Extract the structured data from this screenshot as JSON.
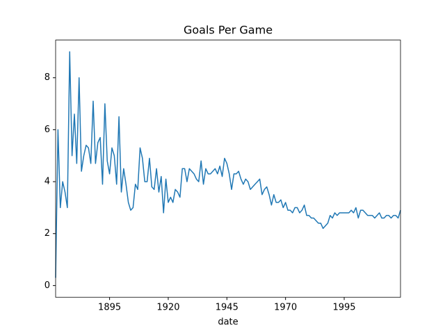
{
  "chart_data": {
    "type": "line",
    "title": "Goals Per Game",
    "xlabel": "date",
    "x": [
      1872,
      1873,
      1874,
      1875,
      1876,
      1877,
      1878,
      1879,
      1880,
      1881,
      1882,
      1883,
      1884,
      1885,
      1886,
      1887,
      1888,
      1889,
      1890,
      1891,
      1892,
      1893,
      1894,
      1895,
      1896,
      1897,
      1898,
      1899,
      1900,
      1901,
      1902,
      1903,
      1904,
      1905,
      1906,
      1907,
      1908,
      1909,
      1910,
      1911,
      1912,
      1913,
      1914,
      1915,
      1916,
      1917,
      1918,
      1919,
      1920,
      1921,
      1922,
      1923,
      1924,
      1925,
      1926,
      1927,
      1928,
      1929,
      1930,
      1931,
      1932,
      1933,
      1934,
      1935,
      1936,
      1937,
      1938,
      1939,
      1940,
      1941,
      1942,
      1943,
      1944,
      1945,
      1946,
      1947,
      1948,
      1949,
      1950,
      1951,
      1952,
      1953,
      1954,
      1955,
      1956,
      1957,
      1958,
      1959,
      1960,
      1961,
      1962,
      1963,
      1964,
      1965,
      1966,
      1967,
      1968,
      1969,
      1970,
      1971,
      1972,
      1973,
      1974,
      1975,
      1976,
      1977,
      1978,
      1979,
      1980,
      1981,
      1982,
      1983,
      1984,
      1985,
      1986,
      1987,
      1988,
      1989,
      1990,
      1991,
      1992,
      1993,
      1994,
      1995,
      1996,
      1997,
      1998,
      1999,
      2000,
      2001,
      2002,
      2003,
      2004,
      2005,
      2006,
      2007,
      2008,
      2009,
      2010,
      2011,
      2012,
      2013,
      2014,
      2015,
      2016,
      2017,
      2018,
      2019
    ],
    "series": [
      {
        "name": "goals",
        "color": "#1f77b4",
        "values": [
          0.3,
          6,
          3,
          4,
          3.6,
          3,
          9,
          5,
          6.6,
          4.7,
          8,
          4.4,
          5,
          5.4,
          5.3,
          4.7,
          7.1,
          4.7,
          5.5,
          5.7,
          3.9,
          7,
          4.8,
          4.3,
          5.3,
          5,
          3.9,
          6.5,
          3.6,
          4.5,
          3.9,
          3.2,
          2.9,
          3,
          3.9,
          3.7,
          5.3,
          4.9,
          4,
          4,
          4.9,
          3.8,
          3.7,
          4.5,
          3.6,
          4.2,
          2.8,
          4.1,
          3.2,
          3.4,
          3.2,
          3.7,
          3.6,
          3.4,
          4.5,
          4.5,
          4,
          4.5,
          4.4,
          4.3,
          4.1,
          4,
          4.8,
          3.9,
          4.5,
          4.3,
          4.3,
          4.4,
          4.5,
          4.3,
          4.6,
          4.2,
          4.9,
          4.7,
          4.3,
          3.7,
          4.3,
          4.3,
          4.4,
          4.1,
          3.9,
          4.1,
          4,
          3.7,
          3.8,
          3.9,
          4,
          4.1,
          3.5,
          3.7,
          3.8,
          3.5,
          3.1,
          3.5,
          3.2,
          3.2,
          3.3,
          3,
          3.2,
          2.9,
          2.9,
          2.8,
          3,
          3,
          2.8,
          2.9,
          3.1,
          2.7,
          2.7,
          2.6,
          2.6,
          2.5,
          2.4,
          2.4,
          2.2,
          2.3,
          2.4,
          2.7,
          2.6,
          2.8,
          2.7,
          2.8,
          2.8,
          2.8,
          2.8,
          2.8,
          2.9,
          2.8,
          3,
          2.6,
          2.9,
          2.9,
          2.8,
          2.7,
          2.7,
          2.7,
          2.6,
          2.7,
          2.8,
          2.6,
          2.6,
          2.7,
          2.7,
          2.6,
          2.7,
          2.7,
          2.6,
          2.9
        ]
      }
    ],
    "xlim": [
      1872,
      2019
    ],
    "xticks": [
      1895,
      1920,
      1945,
      1970,
      1995
    ],
    "ylim": [
      -0.45,
      9.45
    ],
    "yticks": [
      0,
      2,
      4,
      6,
      8
    ],
    "grid": false
  }
}
